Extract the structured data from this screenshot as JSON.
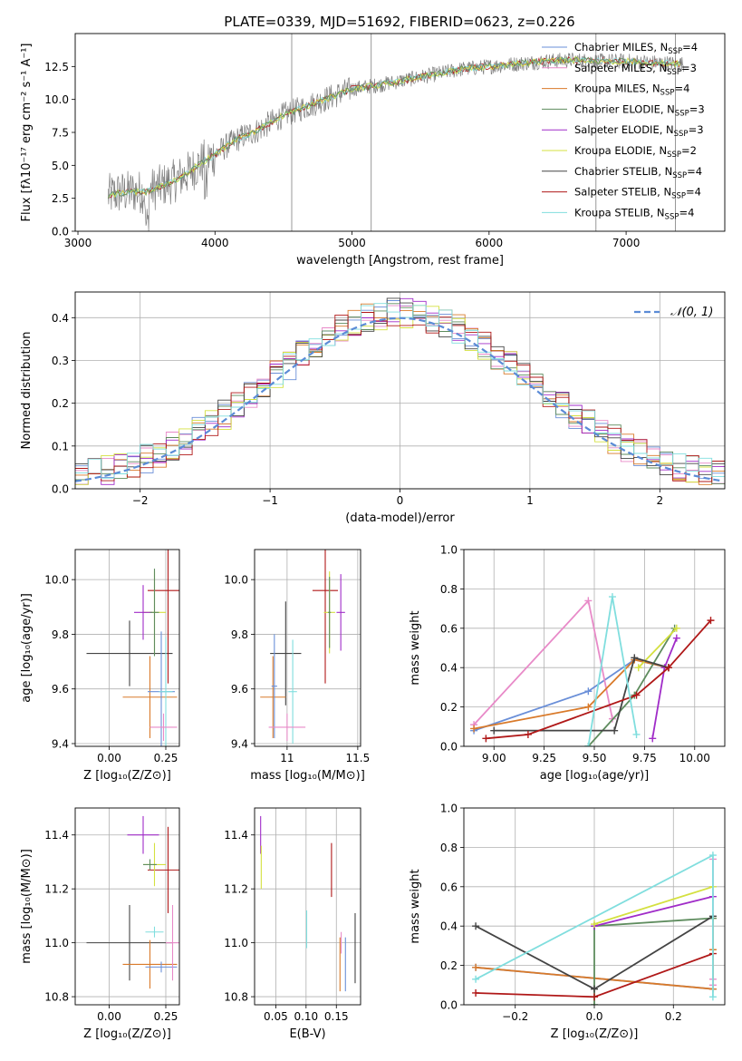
{
  "colors": {
    "chabrier_miles": "#6a8fd8",
    "salpeter_miles": "#e88ac8",
    "kroupa_miles": "#d97a2a",
    "chabrier_elodie": "#5e8c5e",
    "salpeter_elodie": "#a02cc8",
    "kroupa_elodie": "#d4e040",
    "chabrier_stelib": "#444444",
    "salpeter_stelib": "#b01818",
    "kroupa_stelib": "#80dede",
    "data_gray": "#7f7f7f",
    "grid": "#b0b0b0"
  },
  "chart_data": [
    {
      "id": "spectrum",
      "type": "line",
      "title": "PLATE=0339, MJD=51692, FIBERID=0623, z=0.226",
      "xlabel": "wavelength [Angstrom, rest frame]",
      "ylabel": "Flux [fλ10⁻¹⁷ erg cm⁻² s⁻¹ A⁻¹]",
      "xlim": [
        2980,
        7720
      ],
      "ylim": [
        0,
        15
      ],
      "xticks": [
        3000,
        4000,
        5000,
        6000,
        7000
      ],
      "yticks": [
        0.0,
        2.5,
        5.0,
        7.5,
        10.0,
        12.5
      ],
      "grid": false,
      "legend": "top-right",
      "legend_entries": [
        {
          "label": "Chabrier MILES, N",
          "sub": "SSP",
          "tail": "=4",
          "color_key": "chabrier_miles"
        },
        {
          "label": "Salpeter MILES, N",
          "sub": "SSP",
          "tail": "=3",
          "color_key": "salpeter_miles"
        },
        {
          "label": "Kroupa MILES, N",
          "sub": "SSP",
          "tail": "=4",
          "color_key": "kroupa_miles"
        },
        {
          "label": "Chabrier ELODIE, N",
          "sub": "SSP",
          "tail": "=3",
          "color_key": "chabrier_elodie"
        },
        {
          "label": "Salpeter ELODIE, N",
          "sub": "SSP",
          "tail": "=3",
          "color_key": "salpeter_elodie"
        },
        {
          "label": "Kroupa ELODIE, N",
          "sub": "SSP",
          "tail": "=2",
          "color_key": "kroupa_elodie"
        },
        {
          "label": "Chabrier STELIB, N",
          "sub": "SSP",
          "tail": "=4",
          "color_key": "chabrier_stelib"
        },
        {
          "label": "Salpeter STELIB, N",
          "sub": "SSP",
          "tail": "=4",
          "color_key": "salpeter_stelib"
        },
        {
          "label": "Kroupa STELIB, N",
          "sub": "SSP",
          "tail": "=4",
          "color_key": "kroupa_stelib"
        }
      ],
      "continuum": {
        "x": [
          3220,
          3300,
          3400,
          3500,
          3600,
          3700,
          3800,
          3900,
          4000,
          4100,
          4200,
          4300,
          4400,
          4500,
          4600,
          4700,
          4800,
          4900,
          5000,
          5200,
          5400,
          5600,
          5800,
          6000,
          6200,
          6400,
          6600,
          6800,
          7000,
          7200,
          7400
        ],
        "y": [
          2.7,
          2.9,
          3.0,
          3.0,
          3.4,
          3.8,
          4.4,
          5.2,
          5.8,
          6.6,
          7.2,
          7.6,
          8.2,
          8.8,
          9.2,
          9.6,
          10.0,
          10.4,
          10.8,
          11.1,
          11.5,
          11.9,
          12.3,
          12.5,
          12.7,
          12.9,
          13.0,
          12.9,
          12.9,
          12.8,
          12.7
        ]
      }
    },
    {
      "id": "residuals",
      "type": "line",
      "xlabel": "(data-model)/error",
      "ylabel": "Normed distribution",
      "xlim": [
        -2.5,
        2.5
      ],
      "ylim": [
        0,
        0.46
      ],
      "xticks": [
        -2,
        -1,
        0,
        1,
        2
      ],
      "xticklabels": [
        "−2",
        "−1",
        "0",
        "1",
        "2"
      ],
      "yticks": [
        0.0,
        0.1,
        0.2,
        0.3,
        0.4
      ],
      "grid": true,
      "legend": "top-right",
      "legend_label": "𝒩(0, 1)",
      "gaussian": {
        "mu": 0,
        "sigma": 1,
        "color": "#5b8bd6"
      }
    },
    {
      "id": "age_vs_Z",
      "type": "scatter",
      "xlabel": "Z [log₁₀(Z/Z⊙)]",
      "ylabel": "age  [log₁₀(age/yr)]",
      "xlim": [
        -0.15,
        0.31
      ],
      "ylim": [
        9.39,
        10.11
      ],
      "xticks": [
        0.0,
        0.25
      ],
      "xticklabels": [
        "0.00",
        "0.25"
      ],
      "yticks": [
        9.4,
        9.6,
        9.8,
        10.0
      ],
      "grid": true,
      "points": [
        {
          "c": "chabrier_stelib",
          "x": 0.09,
          "y": 9.73,
          "xe": 0.19,
          "ye": 0.12
        },
        {
          "c": "salpeter_stelib",
          "x": 0.26,
          "y": 9.96,
          "xe": 0.09,
          "ye": 0.34
        },
        {
          "c": "kroupa_miles",
          "x": 0.18,
          "y": 9.57,
          "xe": 0.12,
          "ye": 0.15
        },
        {
          "c": "chabrier_miles",
          "x": 0.23,
          "y": 9.59,
          "xe": 0.06,
          "ye": 0.22
        },
        {
          "c": "kroupa_elodie",
          "x": 0.2,
          "y": 9.88,
          "xe": 0.05,
          "ye": 0.15
        },
        {
          "c": "salpeter_elodie",
          "x": 0.15,
          "y": 9.88,
          "xe": 0.04,
          "ye": 0.1
        },
        {
          "c": "chabrier_elodie",
          "x": 0.2,
          "y": 9.88,
          "xe": 0.02,
          "ye": 0.16
        },
        {
          "c": "kroupa_stelib",
          "x": 0.25,
          "y": 9.59,
          "xe": 0.03,
          "ye": 0.2
        },
        {
          "c": "salpeter_miles",
          "x": 0.24,
          "y": 9.46,
          "xe": 0.06,
          "ye": 0.05
        }
      ]
    },
    {
      "id": "age_vs_mass",
      "type": "scatter",
      "xlabel": "mass [log₁₀(M/M⊙)]",
      "ylabel": "",
      "xlim": [
        10.77,
        11.52
      ],
      "ylim": [
        9.39,
        10.11
      ],
      "xticks": [
        11.0,
        11.5
      ],
      "yticks": [
        9.4,
        9.6,
        9.8,
        10.0
      ],
      "grid": true,
      "points": [
        {
          "c": "chabrier_stelib",
          "x": 10.99,
          "y": 9.73,
          "xe": 0.11,
          "ye": 0.19
        },
        {
          "c": "salpeter_stelib",
          "x": 11.27,
          "y": 9.96,
          "xe": 0.09,
          "ye": 0.34
        },
        {
          "c": "kroupa_miles",
          "x": 10.9,
          "y": 9.57,
          "xe": 0.09,
          "ye": 0.15
        },
        {
          "c": "chabrier_miles",
          "x": 10.91,
          "y": 9.61,
          "xe": 0.02,
          "ye": 0.19
        },
        {
          "c": "kroupa_elodie",
          "x": 11.3,
          "y": 9.88,
          "xe": 0.04,
          "ye": 0.15
        },
        {
          "c": "salpeter_elodie",
          "x": 11.38,
          "y": 9.88,
          "xe": 0.03,
          "ye": 0.14
        },
        {
          "c": "chabrier_elodie",
          "x": 11.3,
          "y": 9.88,
          "xe": 0.01,
          "ye": 0.13
        },
        {
          "c": "kroupa_stelib",
          "x": 11.04,
          "y": 9.59,
          "xe": 0.03,
          "ye": 0.19
        },
        {
          "c": "salpeter_miles",
          "x": 11.0,
          "y": 9.46,
          "xe": 0.13,
          "ye": 0.05
        }
      ]
    },
    {
      "id": "massweight_vs_age",
      "type": "line",
      "xlabel": "age  [log₁₀(age/yr)]",
      "ylabel": "mass weight",
      "xlim": [
        8.85,
        10.15
      ],
      "ylim": [
        0,
        1
      ],
      "xticks": [
        9.0,
        9.25,
        9.5,
        9.75,
        10.0
      ],
      "xticklabels": [
        "9.00",
        "9.25",
        "9.50",
        "9.75",
        "10.00"
      ],
      "yticks": [
        0.0,
        0.2,
        0.4,
        0.6,
        0.8,
        1.0
      ],
      "grid": true,
      "series": [
        {
          "c": "chabrier_miles",
          "x": [
            8.9,
            9.47,
            9.7,
            9.87
          ],
          "y": [
            0.08,
            0.28,
            0.44,
            0.4
          ]
        },
        {
          "c": "salpeter_miles",
          "x": [
            8.9,
            9.47,
            9.59
          ],
          "y": [
            0.11,
            0.74,
            0.14
          ]
        },
        {
          "c": "kroupa_miles",
          "x": [
            8.9,
            9.47,
            9.7,
            9.87
          ],
          "y": [
            0.09,
            0.2,
            0.44,
            0.4
          ]
        },
        {
          "c": "chabrier_elodie",
          "x": [
            9.47,
            9.7,
            9.9
          ],
          "y": [
            0.0,
            0.26,
            0.6
          ]
        },
        {
          "c": "salpeter_elodie",
          "x": [
            9.79,
            9.85,
            9.91
          ],
          "y": [
            0.04,
            0.4,
            0.55
          ]
        },
        {
          "c": "kroupa_elodie",
          "x": [
            9.72,
            9.91
          ],
          "y": [
            0.4,
            0.6
          ]
        },
        {
          "c": "chabrier_stelib",
          "x": [
            9.0,
            9.6,
            9.7,
            9.87
          ],
          "y": [
            0.08,
            0.08,
            0.45,
            0.4
          ]
        },
        {
          "c": "salpeter_stelib",
          "x": [
            8.96,
            9.17,
            9.71,
            9.87,
            10.08
          ],
          "y": [
            0.04,
            0.06,
            0.26,
            0.4,
            0.64
          ]
        },
        {
          "c": "kroupa_stelib",
          "x": [
            9.47,
            9.59,
            9.71
          ],
          "y": [
            0.0,
            0.76,
            0.06
          ]
        }
      ]
    },
    {
      "id": "mass_vs_Z",
      "type": "scatter",
      "xlabel": "Z [log₁₀(Z/Z⊙)]",
      "ylabel": "mass [log₁₀(M/M⊙)]",
      "xlim": [
        -0.15,
        0.31
      ],
      "ylim": [
        10.77,
        11.5
      ],
      "xticks": [
        0.0,
        0.25
      ],
      "xticklabels": [
        "0.00",
        "0.25"
      ],
      "yticks": [
        10.8,
        11.0,
        11.2,
        11.4
      ],
      "grid": true,
      "points": [
        {
          "c": "chabrier_stelib",
          "x": 0.09,
          "y": 11.0,
          "xe": 0.19,
          "ye": 0.14
        },
        {
          "c": "salpeter_stelib",
          "x": 0.26,
          "y": 11.27,
          "xe": 0.09,
          "ye": 0.16
        },
        {
          "c": "kroupa_miles",
          "x": 0.18,
          "y": 10.92,
          "xe": 0.12,
          "ye": 0.09
        },
        {
          "c": "chabrier_miles",
          "x": 0.23,
          "y": 10.91,
          "xe": 0.07,
          "ye": 0.02
        },
        {
          "c": "kroupa_elodie",
          "x": 0.2,
          "y": 11.29,
          "xe": 0.05,
          "ye": 0.08
        },
        {
          "c": "salpeter_elodie",
          "x": 0.15,
          "y": 11.4,
          "xe": 0.07,
          "ye": 0.07
        },
        {
          "c": "chabrier_elodie",
          "x": 0.18,
          "y": 11.29,
          "xe": 0.03,
          "ye": 0.02
        },
        {
          "c": "kroupa_stelib",
          "x": 0.2,
          "y": 11.04,
          "xe": 0.04,
          "ye": 0.02
        },
        {
          "c": "salpeter_miles",
          "x": 0.28,
          "y": 11.0,
          "xe": 0.03,
          "ye": 0.14
        }
      ]
    },
    {
      "id": "mass_vs_EBV",
      "type": "scatter",
      "xlabel": "E(B-V)",
      "ylabel": "",
      "xlim": [
        0.015,
        0.19
      ],
      "ylim": [
        10.77,
        11.5
      ],
      "xticks": [
        0.05,
        0.1,
        0.15
      ],
      "xticklabels": [
        "0.05",
        "0.10",
        "0.15"
      ],
      "yticks": [
        10.8,
        11.0,
        11.2,
        11.4
      ],
      "grid": true,
      "points": [
        {
          "c": "salpeter_elodie",
          "x": 0.025,
          "y": 11.4,
          "xe": 0.0,
          "ye": 0.07
        },
        {
          "c": "kroupa_elodie",
          "x": 0.026,
          "y": 11.28,
          "xe": 0.0,
          "ye": 0.08
        },
        {
          "c": "kroupa_stelib",
          "x": 0.101,
          "y": 11.05,
          "xe": 0.0,
          "ye": 0.07
        },
        {
          "c": "salpeter_stelib",
          "x": 0.142,
          "y": 11.27,
          "xe": 0.0,
          "ye": 0.1
        },
        {
          "c": "kroupa_miles",
          "x": 0.156,
          "y": 10.92,
          "xe": 0.0,
          "ye": 0.1
        },
        {
          "c": "salpeter_miles",
          "x": 0.158,
          "y": 11.0,
          "xe": 0.0,
          "ye": 0.04
        },
        {
          "c": "chabrier_miles",
          "x": 0.165,
          "y": 10.92,
          "xe": 0.0,
          "ye": 0.1
        },
        {
          "c": "chabrier_stelib",
          "x": 0.181,
          "y": 10.98,
          "xe": 0.0,
          "ye": 0.13
        }
      ]
    },
    {
      "id": "massweight_vs_Z",
      "type": "line",
      "xlabel": "Z [log₁₀(Z/Z⊙)]",
      "ylabel": "mass weight",
      "xlim": [
        -0.33,
        0.33
      ],
      "ylim": [
        0,
        1
      ],
      "xticks": [
        -0.2,
        0.0,
        0.2
      ],
      "xticklabels": [
        "−0.2",
        "0.0",
        "0.2"
      ],
      "yticks": [
        0.0,
        0.2,
        0.4,
        0.6,
        0.8,
        1.0
      ],
      "grid": true,
      "series": [
        {
          "c": "chabrier_miles",
          "x": [
            -0.3,
            0.3
          ],
          "y": [
            0.19,
            0.08
          ]
        },
        {
          "c": "salpeter_miles",
          "x": [
            0.3,
            0.3,
            0.3
          ],
          "y": [
            0.13,
            0.74,
            0.1
          ]
        },
        {
          "c": "kroupa_miles",
          "x": [
            -0.3,
            0.3,
            0.3,
            0.3
          ],
          "y": [
            0.19,
            0.08,
            0.44,
            0.28
          ]
        },
        {
          "c": "chabrier_elodie",
          "x": [
            0.0,
            0.0,
            0.3
          ],
          "y": [
            0.0,
            0.4,
            0.44
          ]
        },
        {
          "c": "salpeter_elodie",
          "x": [
            0.0,
            0.3
          ],
          "y": [
            0.4,
            0.55
          ]
        },
        {
          "c": "kroupa_elodie",
          "x": [
            0.0,
            0.3
          ],
          "y": [
            0.41,
            0.6
          ]
        },
        {
          "c": "chabrier_stelib",
          "x": [
            -0.3,
            0.0,
            0.3
          ],
          "y": [
            0.4,
            0.08,
            0.45
          ]
        },
        {
          "c": "salpeter_stelib",
          "x": [
            -0.3,
            0.0,
            0.3
          ],
          "y": [
            0.06,
            0.04,
            0.26
          ]
        },
        {
          "c": "kroupa_stelib",
          "x": [
            -0.3,
            0.3,
            0.3
          ],
          "y": [
            0.13,
            0.76,
            0.04
          ]
        }
      ]
    }
  ]
}
